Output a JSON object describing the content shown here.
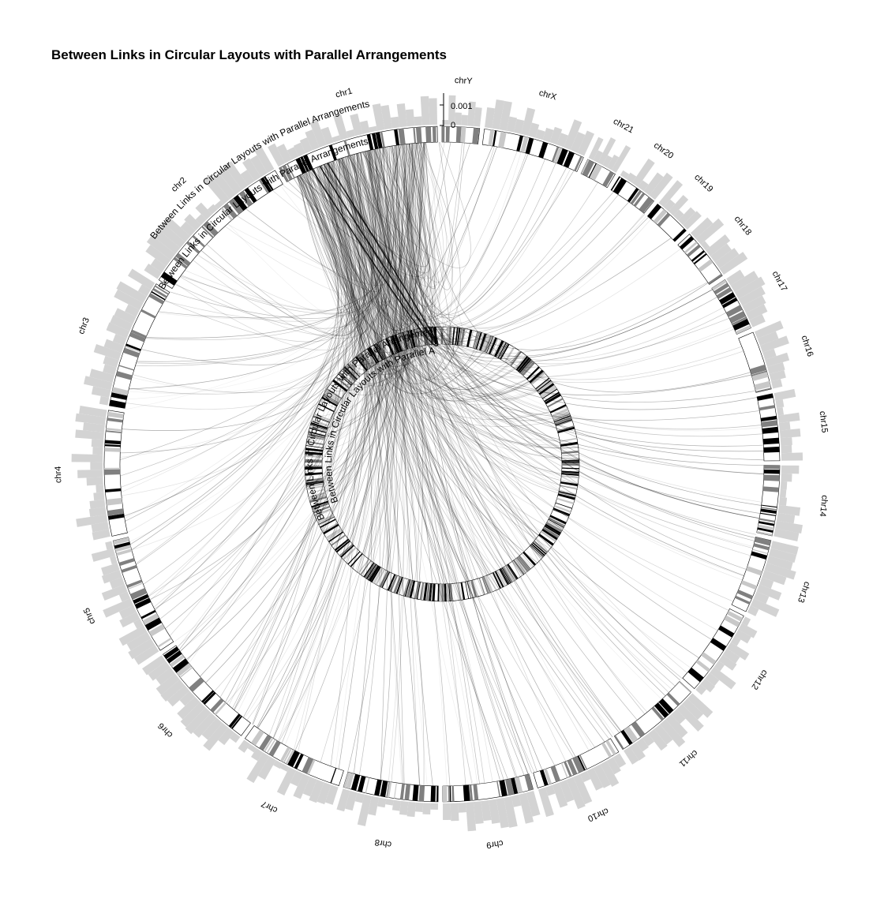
{
  "title": "Between Links in Circular Layouts with Parallel Arrangements",
  "track_labels": {
    "outer_top": "Between Links in Circular Layouts with Parallel Arrangements",
    "ideogram": "Between Links in Circular Layouts with Parallel Arrangements",
    "inner_a": "Between Links in Circular Layouts with Parallel Arrangements",
    "inner_b": "Between Links in Circular Layouts with Parallel Arrangements"
  },
  "axis": {
    "tick_max": "0.001",
    "tick_zero": "0"
  },
  "colors": {
    "histogram": "#d3d3d3",
    "band_dark": "#000000",
    "band_mid": "#808080",
    "link": "#000000"
  },
  "chart_data": {
    "type": "circos",
    "chromosomes": [
      {
        "name": "chr1",
        "length": 249
      },
      {
        "name": "chr2",
        "length": 243
      },
      {
        "name": "chr3",
        "length": 198
      },
      {
        "name": "chr4",
        "length": 191
      },
      {
        "name": "chr5",
        "length": 181
      },
      {
        "name": "chr6",
        "length": 171
      },
      {
        "name": "chr7",
        "length": 159
      },
      {
        "name": "chr8",
        "length": 145
      },
      {
        "name": "chr9",
        "length": 138
      },
      {
        "name": "chr10",
        "length": 134
      },
      {
        "name": "chr11",
        "length": 135
      },
      {
        "name": "chr12",
        "length": 133
      },
      {
        "name": "chr13",
        "length": 114
      },
      {
        "name": "chr14",
        "length": 107
      },
      {
        "name": "chr15",
        "length": 102
      },
      {
        "name": "chr16",
        "length": 90
      },
      {
        "name": "chr17",
        "length": 83
      },
      {
        "name": "chr18",
        "length": 80
      },
      {
        "name": "chr19",
        "length": 59
      },
      {
        "name": "chr20",
        "length": 64
      },
      {
        "name": "chr21",
        "length": 47
      },
      {
        "name": "chrX",
        "length": 156
      },
      {
        "name": "chrY",
        "length": 57
      }
    ],
    "outer_histogram": {
      "range": [
        0,
        0.0013
      ],
      "ticks": [
        0,
        0.001
      ]
    },
    "links": {
      "count": 420,
      "source_region": "chr1",
      "targets": "all chromosomes"
    }
  }
}
